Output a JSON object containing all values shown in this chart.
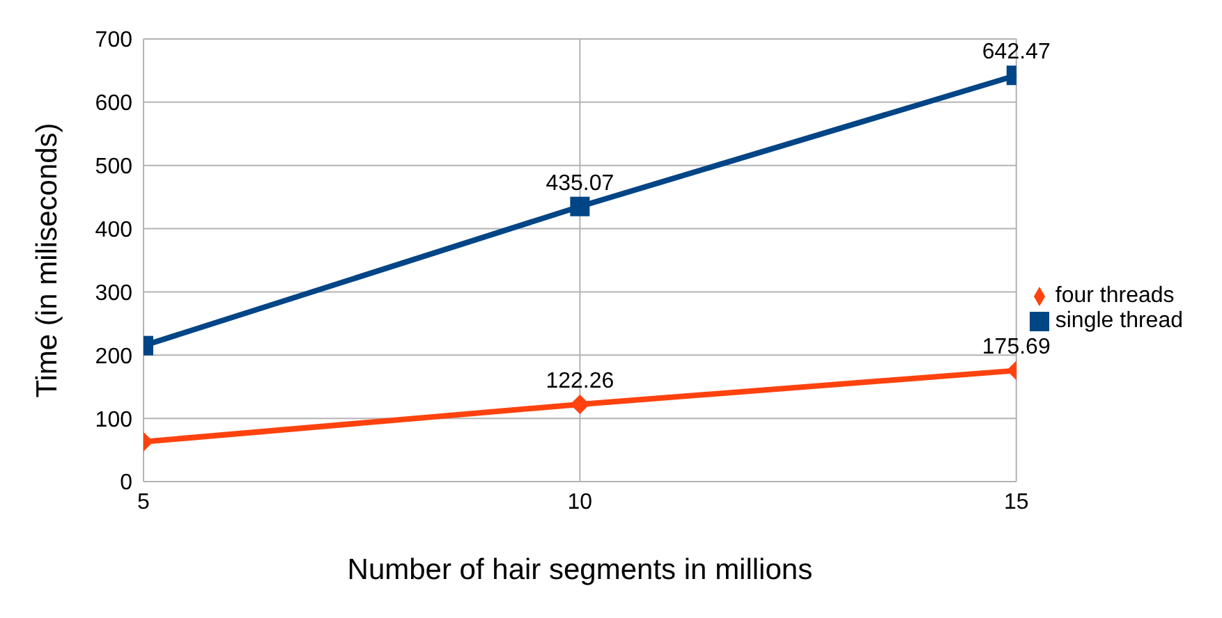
{
  "chart_data": {
    "type": "line",
    "xlabel": "Number of hair segments in millions",
    "ylabel": "Time (in miliseconds)",
    "x": [
      5,
      10,
      15
    ],
    "xlim": [
      5,
      15
    ],
    "xticks": [
      5,
      10,
      15
    ],
    "ylim": [
      0,
      700
    ],
    "yticks": [
      0,
      100,
      200,
      300,
      400,
      500,
      600,
      700
    ],
    "grid": true,
    "legend": "right",
    "series": [
      {
        "name": "single thread",
        "color": "#004586",
        "marker": "square",
        "values": [
          215,
          435.07,
          642.47
        ],
        "value_labels": [
          null,
          "435.07",
          "642.47"
        ]
      },
      {
        "name": "four threads",
        "color": "#ff420e",
        "marker": "diamond",
        "values": [
          63,
          122.26,
          175.69
        ],
        "value_labels": [
          null,
          "122.26",
          "175.69"
        ]
      }
    ]
  }
}
